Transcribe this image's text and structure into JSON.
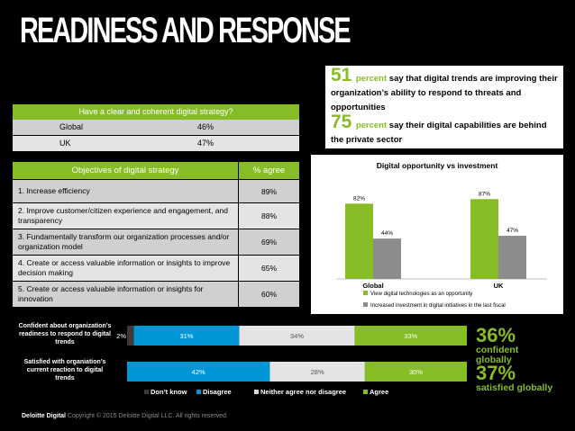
{
  "title": "READINESS AND RESPONSE",
  "strategy_table": {
    "header": "Have a clear and coherent digital strategy?",
    "rows": [
      {
        "label": "Global",
        "value": "46%"
      },
      {
        "label": "UK",
        "value": "47%"
      }
    ]
  },
  "objectives_table": {
    "header_label": "Objectives of digital strategy",
    "header_value": "% agree",
    "rows": [
      {
        "label": "1. Increase efficiency",
        "value": "89%"
      },
      {
        "label": "2. Improve customer/citizen experience and engagement, and transparency",
        "value": "88%"
      },
      {
        "label": "3. Fundamentally transform our organization processes and/or organization model",
        "value": "69%"
      },
      {
        "label": "4. Create or access valuable information or insights to improve decision making",
        "value": "65%"
      },
      {
        "label": "5. Create or access valuable information or insights for innovation",
        "value": "60%"
      }
    ]
  },
  "callout": {
    "stat1_number": "51",
    "stat1_unit": "percent",
    "stat1_text": " say that digital trends are improving their organization’s ability to respond to threats and opportunities",
    "stat2_number": "75",
    "stat2_unit": "percent",
    "stat2_text": " say their digital capabilities are behind the private sector"
  },
  "colors": {
    "accent": "#86bc25",
    "gray_bar": "#8c8c8c",
    "dark_gray": "#3a3a3a",
    "blue": "#0097d7",
    "light_gray": "#e4e4e4",
    "background": "#000000"
  },
  "chart_data": [
    {
      "type": "bar",
      "title": "Digital opportunity vs investment",
      "categories": [
        "Global",
        "UK"
      ],
      "ylim": [
        0,
        100
      ],
      "grid": false,
      "legend_placement": "bottom",
      "series": [
        {
          "name": "View digital technologies as an opportunity",
          "values": [
            82,
            87
          ],
          "labels": [
            "82%",
            "87%"
          ],
          "color": "#86bc25"
        },
        {
          "name": "Increased investment in digital initiatives in the last fiscal",
          "values": [
            44,
            47
          ],
          "labels": [
            "44%",
            "47%"
          ],
          "color": "#8c8c8c"
        }
      ]
    },
    {
      "type": "bar",
      "orientation": "horizontal",
      "stacked": true,
      "categories": [
        "Confident about organization’s readiness to respond to digital trends",
        "Satisfied with organiation’s current reaction to digital trends"
      ],
      "legend_placement": "bottom",
      "series": [
        {
          "name": "Don’t know",
          "values": [
            2,
            0
          ],
          "labels": [
            "2%",
            ""
          ],
          "color": "#3a3a3a"
        },
        {
          "name": "Disagree",
          "values": [
            31,
            42
          ],
          "labels": [
            "31%",
            "42%"
          ],
          "color": "#0097d7"
        },
        {
          "name": "Neither agree nor disagree",
          "values": [
            34,
            28
          ],
          "labels": [
            "34%",
            "28%"
          ],
          "color": "#e4e4e4"
        },
        {
          "name": "Agree",
          "values": [
            33,
            30
          ],
          "labels": [
            "33%",
            "30%"
          ],
          "color": "#86bc25"
        }
      ]
    }
  ],
  "side_stats": [
    {
      "value": "36%",
      "text": "confident globally"
    },
    {
      "value": "37%",
      "text": "satisfied globally"
    }
  ],
  "footer": {
    "brand": "Deloitte Digital",
    "text": "Copyright © 2015 Deloitte Digital LLC. All rights reserved."
  }
}
